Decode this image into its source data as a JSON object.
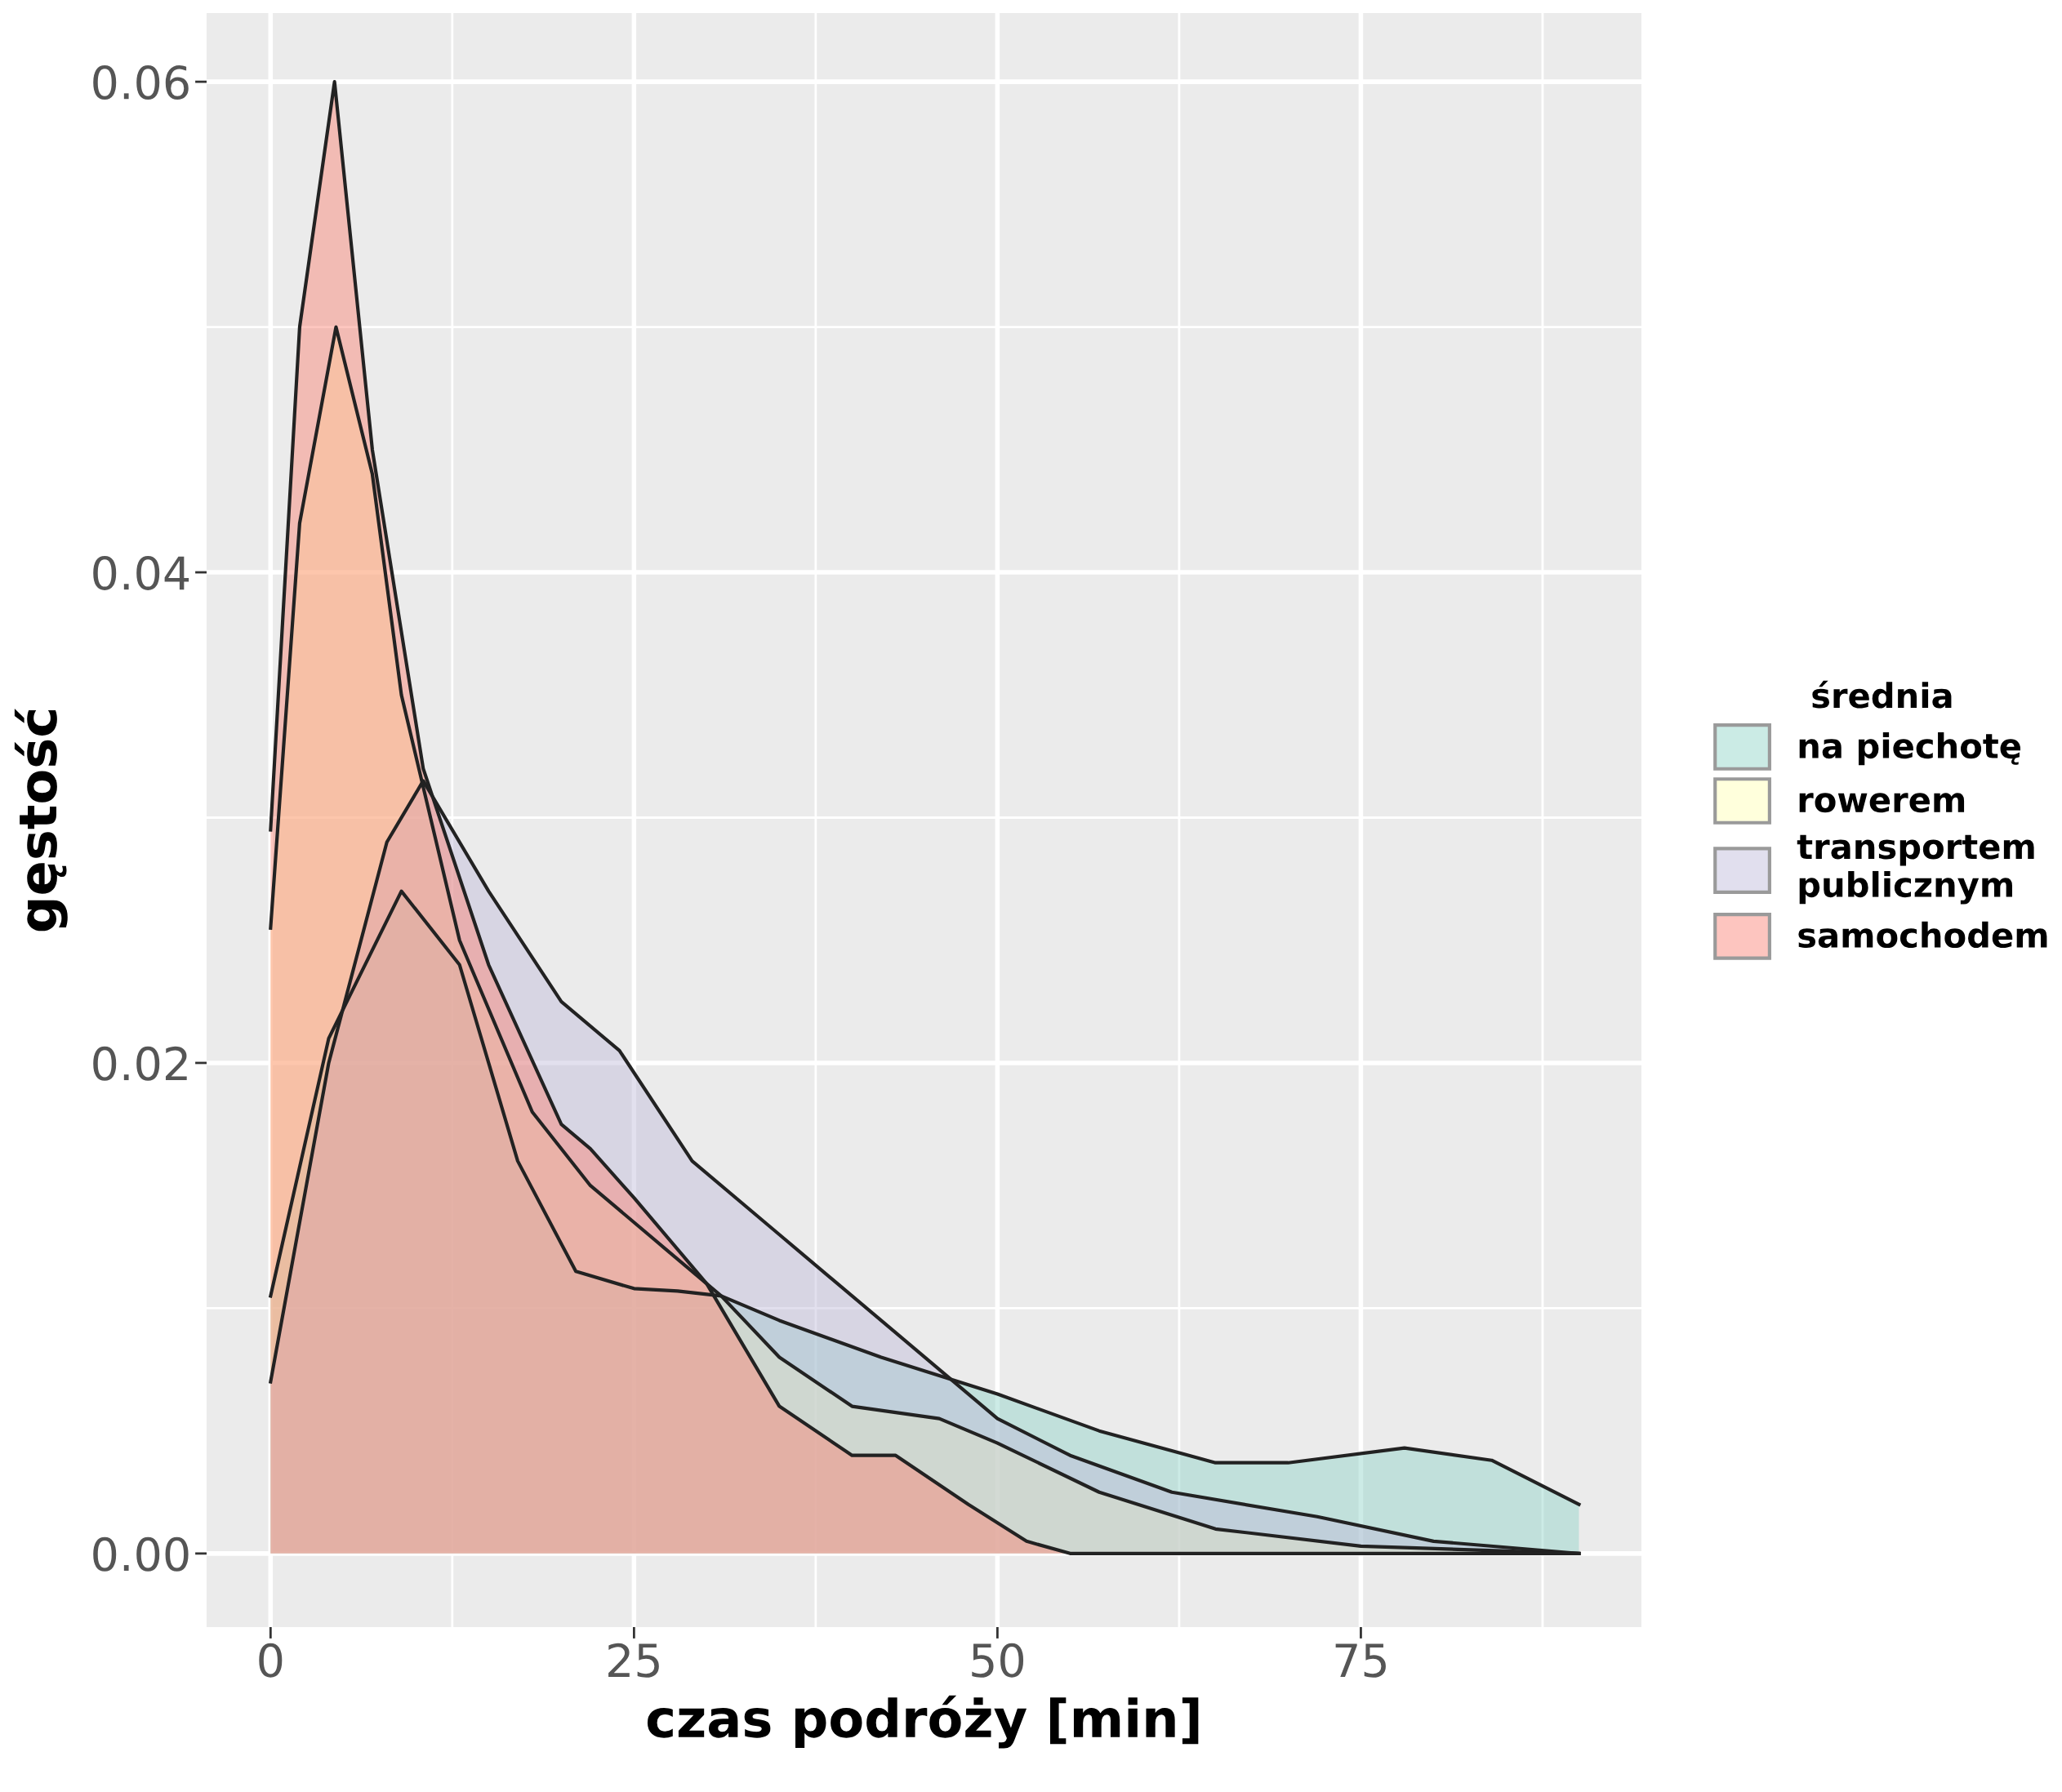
{
  "chart_data": {
    "type": "area",
    "xlabel": "czas podróży [min]",
    "ylabel": "gęstość",
    "legend_title": "średnia",
    "legend": "right",
    "grid": true,
    "xlim": [
      -4.4,
      94.3
    ],
    "ylim": [
      -0.003,
      0.0628
    ],
    "xticks": [
      0,
      25,
      50,
      75
    ],
    "yticks": [
      {
        "value": 0,
        "label": "0.00"
      },
      {
        "value": 0.02,
        "label": "0.02"
      },
      {
        "value": 0.04,
        "label": "0.04"
      },
      {
        "value": 0.06,
        "label": "0.06"
      }
    ],
    "series": [
      {
        "name": "na piechotę",
        "color": "#8dd3c7",
        "x": [
          0,
          4,
          9,
          13,
          17,
          21,
          25,
          28,
          31,
          35,
          42,
          50,
          57,
          65,
          70,
          78,
          84,
          90
        ],
        "values": [
          0.0105,
          0.021,
          0.027,
          0.024,
          0.016,
          0.0115,
          0.0108,
          0.0107,
          0.0105,
          0.0095,
          0.008,
          0.0065,
          0.005,
          0.0037,
          0.0037,
          0.0043,
          0.0038,
          0.002
        ]
      },
      {
        "name": "rowerem",
        "color": "#ffffb3",
        "x": [
          0,
          2,
          4.5,
          7,
          9,
          13,
          18,
          22,
          27,
          31,
          35,
          40,
          46,
          50,
          57,
          65,
          75,
          90
        ],
        "values": [
          0.0255,
          0.042,
          0.05,
          0.044,
          0.035,
          0.025,
          0.018,
          0.015,
          0.0125,
          0.0105,
          0.008,
          0.006,
          0.0055,
          0.0045,
          0.0025,
          0.001,
          0.0003,
          0
        ]
      },
      {
        "name": "transportem\npublicznym",
        "color": "#bebada",
        "x": [
          0,
          4,
          8,
          10.5,
          15,
          20,
          24,
          29,
          35,
          38,
          43,
          50,
          55,
          62,
          72,
          80,
          90
        ],
        "values": [
          0.007,
          0.02,
          0.029,
          0.0315,
          0.027,
          0.0225,
          0.0205,
          0.016,
          0.013,
          0.0115,
          0.009,
          0.0055,
          0.004,
          0.0025,
          0.0015,
          0.0005,
          0
        ]
      },
      {
        "name": "samochodem",
        "color": "#fb8072",
        "x": [
          0,
          2,
          4.4,
          7,
          10.5,
          15,
          20,
          22,
          25,
          30,
          35,
          40,
          43,
          48,
          52,
          55,
          90
        ],
        "values": [
          0.0295,
          0.05,
          0.06,
          0.045,
          0.032,
          0.024,
          0.0175,
          0.0165,
          0.0145,
          0.011,
          0.006,
          0.004,
          0.004,
          0.002,
          0.0005,
          0,
          0
        ]
      }
    ]
  }
}
